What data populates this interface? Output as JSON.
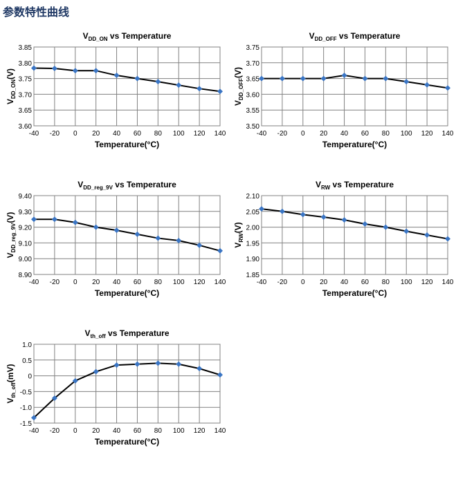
{
  "heading": "参数特性曲线",
  "style": {
    "line_color": "#000000",
    "marker_color": "#3a75c4",
    "grid_color": "#808080",
    "grid": true,
    "marker": "diamond"
  },
  "chart_data": [
    {
      "type": "line",
      "title": {
        "main": "V",
        "sub": "DD_ON",
        "rest": " vs Temperature"
      },
      "xlabel": "Temperature(°C)",
      "ylabel": {
        "main": "V",
        "sub": "DD_ON",
        "rest": "(V)"
      },
      "x": [
        -40,
        -20,
        0,
        20,
        40,
        60,
        80,
        100,
        120,
        140
      ],
      "y": [
        3.783,
        3.782,
        3.775,
        3.775,
        3.76,
        3.75,
        3.74,
        3.729,
        3.718,
        3.709
      ],
      "xlim": [
        -40,
        140
      ],
      "ylim": [
        3.6,
        3.85
      ],
      "yticks": [
        "3.60",
        "3.65",
        "3.70",
        "3.75",
        "3.80",
        "3.85"
      ],
      "xticks": [
        "-40",
        "-20",
        "0",
        "20",
        "40",
        "60",
        "80",
        "100",
        "120",
        "140"
      ]
    },
    {
      "type": "line",
      "title": {
        "main": "V",
        "sub": "DD_OFF",
        "rest": " vs Temperature"
      },
      "xlabel": "Temperature(°C)",
      "ylabel": {
        "main": "V",
        "sub": "DD_OFF",
        "rest": "(V)"
      },
      "x": [
        -40,
        -20,
        0,
        20,
        40,
        60,
        80,
        100,
        120,
        140
      ],
      "y": [
        3.65,
        3.65,
        3.65,
        3.65,
        3.66,
        3.65,
        3.65,
        3.64,
        3.63,
        3.62
      ],
      "xlim": [
        -40,
        140
      ],
      "ylim": [
        3.5,
        3.75
      ],
      "yticks": [
        "3.50",
        "3.55",
        "3.60",
        "3.65",
        "3.70",
        "3.75"
      ],
      "xticks": [
        "-40",
        "-20",
        "0",
        "20",
        "40",
        "60",
        "80",
        "100",
        "120",
        "140"
      ]
    },
    {
      "type": "line",
      "title": {
        "main": "V",
        "sub": "DD_reg_9V",
        "rest": " vs Temperature"
      },
      "xlabel": "Temperature(°C)",
      "ylabel": {
        "main": "V",
        "sub": "DD_reg_9V",
        "rest": "(V)"
      },
      "x": [
        -40,
        -20,
        0,
        20,
        40,
        60,
        80,
        100,
        120,
        140
      ],
      "y": [
        9.25,
        9.25,
        9.23,
        9.2,
        9.18,
        9.155,
        9.13,
        9.115,
        9.085,
        9.05
      ],
      "xlim": [
        -40,
        140
      ],
      "ylim": [
        8.9,
        9.4
      ],
      "yticks": [
        "8.90",
        "9.00",
        "9.10",
        "9.20",
        "9.30",
        "9.40"
      ],
      "xticks": [
        "-40",
        "-20",
        "0",
        "20",
        "40",
        "60",
        "80",
        "100",
        "120",
        "140"
      ]
    },
    {
      "type": "line",
      "title": {
        "main": "V",
        "sub": "RW",
        "rest": " vs Temperature"
      },
      "xlabel": "Temperature(°C)",
      "ylabel": {
        "main": "V",
        "sub": "RW",
        "rest": "(V)"
      },
      "x": [
        -40,
        -20,
        0,
        20,
        40,
        60,
        80,
        100,
        120,
        140
      ],
      "y": [
        2.058,
        2.05,
        2.04,
        2.032,
        2.023,
        2.01,
        2.0,
        1.987,
        1.975,
        1.963
      ],
      "xlim": [
        -40,
        140
      ],
      "ylim": [
        1.85,
        2.1
      ],
      "yticks": [
        "1.85",
        "1.90",
        "1.95",
        "2.00",
        "2.05",
        "2.10"
      ],
      "xticks": [
        "-40",
        "-20",
        "0",
        "20",
        "40",
        "60",
        "80",
        "100",
        "120",
        "140"
      ]
    },
    {
      "type": "line",
      "title": {
        "main": "V",
        "sub": "th_off",
        "rest": " vs Temperature"
      },
      "xlabel": "Temperature(°C)",
      "ylabel": {
        "main": "V",
        "sub": "th_off",
        "rest": "(mV)"
      },
      "x": [
        -40,
        -20,
        0,
        20,
        40,
        60,
        80,
        100,
        120,
        140
      ],
      "y": [
        -1.33,
        -0.71,
        -0.16,
        0.13,
        0.34,
        0.37,
        0.4,
        0.37,
        0.23,
        0.03
      ],
      "xlim": [
        -40,
        140
      ],
      "ylim": [
        -1.5,
        1.0
      ],
      "yticks": [
        "-1.5",
        "-1.0",
        "-0.5",
        "0",
        "0.5",
        "1.0"
      ],
      "xticks": [
        "-40",
        "-20",
        "0",
        "20",
        "40",
        "60",
        "80",
        "100",
        "120",
        "140"
      ]
    }
  ]
}
